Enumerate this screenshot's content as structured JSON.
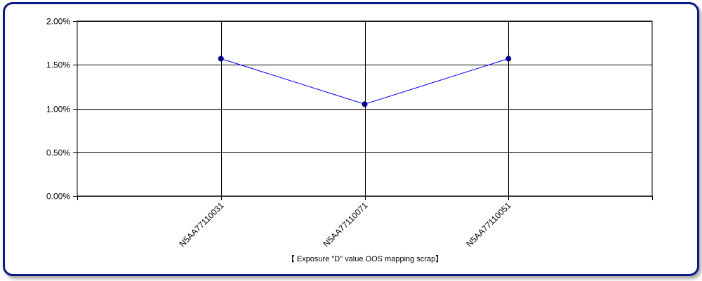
{
  "chart_data": {
    "type": "line",
    "categories": [
      "N5AA77110031",
      "N5AA77110071",
      "N5AA77110051"
    ],
    "series": [
      {
        "values": [
          1.57,
          1.05,
          1.57
        ],
        "color": "#0000ff",
        "marker_color": "#00008b"
      }
    ],
    "ylim": [
      0,
      2
    ],
    "yticks": [
      0,
      0.5,
      1,
      1.5,
      2
    ],
    "ytick_labels": [
      "0.00%",
      "0.50%",
      "1.00%",
      "1.50%",
      "2.00%"
    ],
    "xlabel": "【 Exposure \"D\" value OOS mapping scrap】",
    "ylabel": "",
    "grid": true,
    "frame_color": "#0d1a80"
  }
}
